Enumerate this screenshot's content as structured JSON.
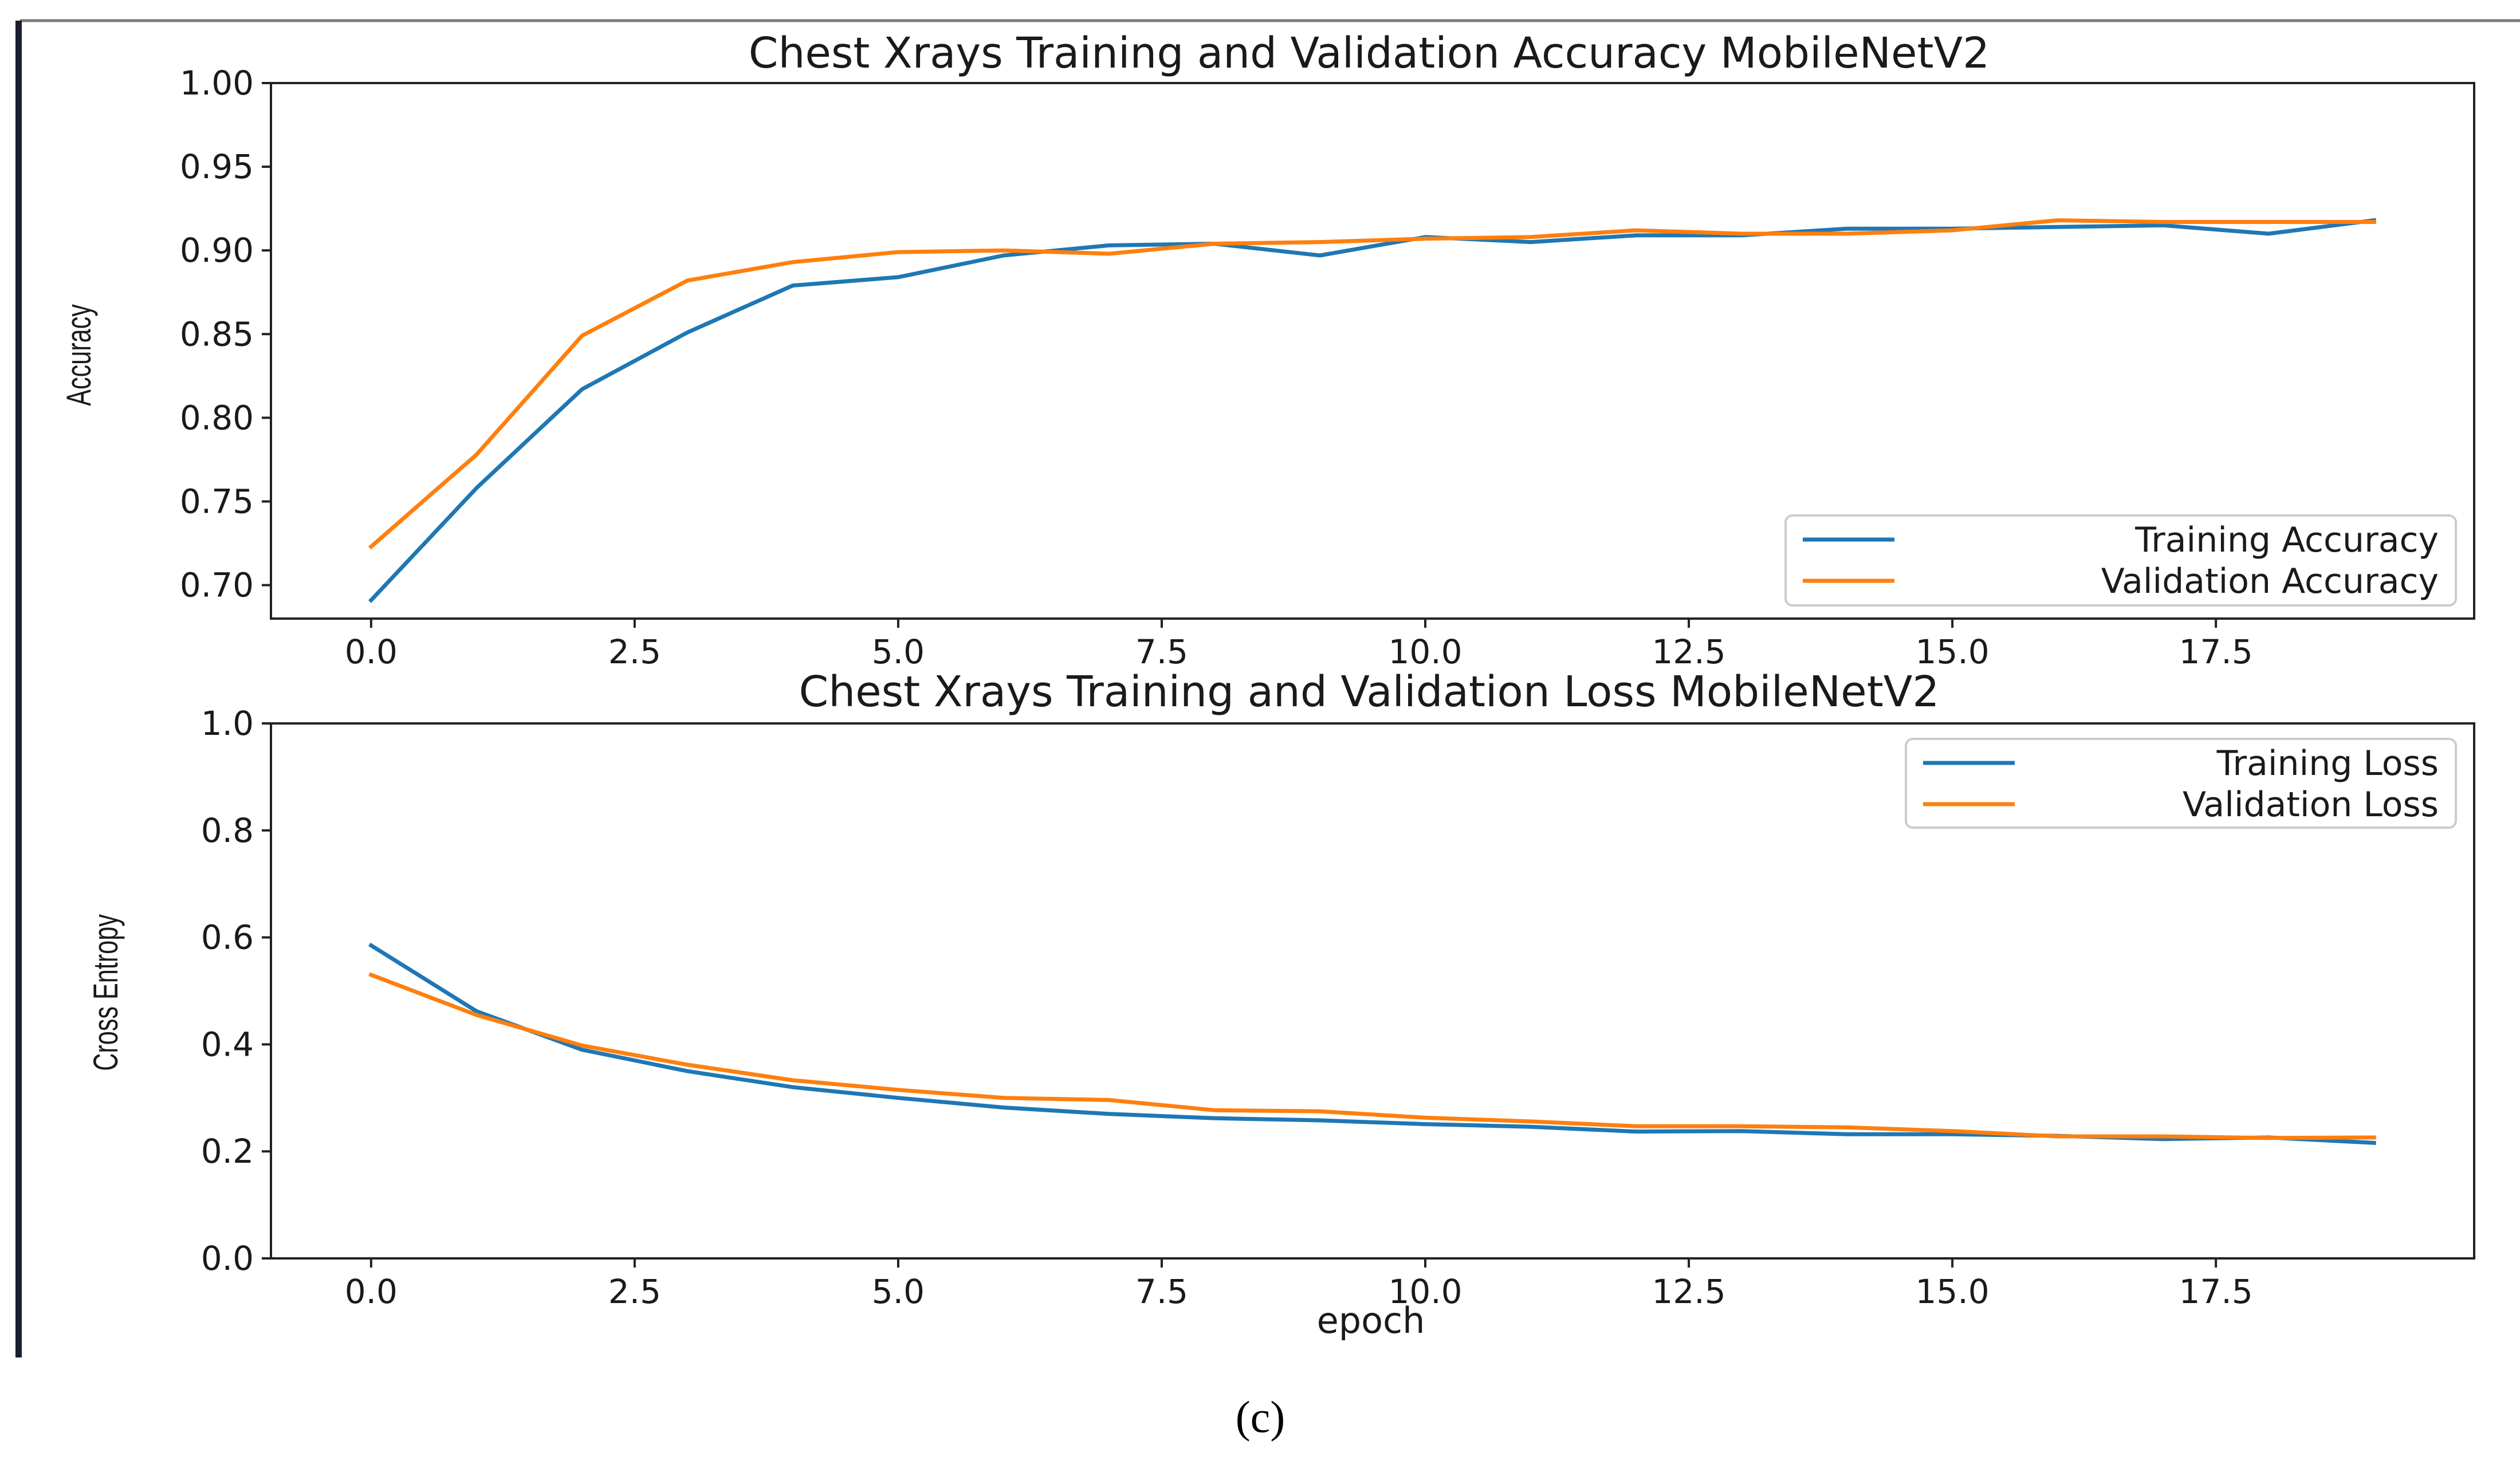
{
  "chart_data": [
    {
      "type": "line",
      "title": "Chest Xrays Training and Validation Accuracy MobileNetV2",
      "xlabel": "",
      "ylabel": "Accuracy",
      "xlim": [
        -0.95,
        19.95
      ],
      "ylim": [
        0.68,
        1.0
      ],
      "xticks": [
        0.0,
        2.5,
        5.0,
        7.5,
        10.0,
        12.5,
        15.0,
        17.5
      ],
      "xtick_labels": [
        "0.0",
        "2.5",
        "5.0",
        "7.5",
        "10.0",
        "12.5",
        "15.0",
        "17.5"
      ],
      "yticks": [
        0.7,
        0.75,
        0.8,
        0.85,
        0.9,
        0.95,
        1.0
      ],
      "ytick_labels": [
        "0.70",
        "0.75",
        "0.80",
        "0.85",
        "0.90",
        "0.95",
        "1.00"
      ],
      "legend_position": "lower-right",
      "x": [
        0,
        1,
        2,
        3,
        4,
        5,
        6,
        7,
        8,
        9,
        10,
        11,
        12,
        13,
        14,
        15,
        16,
        17,
        18,
        19
      ],
      "series": [
        {
          "name": "Training Accuracy",
          "color": "#1f77b4",
          "values": [
            0.691,
            0.758,
            0.817,
            0.851,
            0.879,
            0.884,
            0.897,
            0.903,
            0.904,
            0.897,
            0.908,
            0.905,
            0.909,
            0.909,
            0.913,
            0.913,
            0.914,
            0.915,
            0.91,
            0.918
          ]
        },
        {
          "name": "Validation Accuracy",
          "color": "#ff7f0e",
          "values": [
            0.723,
            0.778,
            0.849,
            0.882,
            0.893,
            0.899,
            0.9,
            0.898,
            0.904,
            0.905,
            0.907,
            0.908,
            0.912,
            0.91,
            0.91,
            0.912,
            0.918,
            0.917,
            0.917,
            0.917
          ]
        }
      ]
    },
    {
      "type": "line",
      "title": "Chest Xrays Training and Validation Loss MobileNetV2",
      "xlabel": "epoch",
      "ylabel": "Cross Entropy",
      "xlim": [
        -0.95,
        19.95
      ],
      "ylim": [
        0.0,
        1.0
      ],
      "xticks": [
        0.0,
        2.5,
        5.0,
        7.5,
        10.0,
        12.5,
        15.0,
        17.5
      ],
      "xtick_labels": [
        "0.0",
        "2.5",
        "5.0",
        "7.5",
        "10.0",
        "12.5",
        "15.0",
        "17.5"
      ],
      "yticks": [
        0.0,
        0.2,
        0.4,
        0.6,
        0.8,
        1.0
      ],
      "ytick_labels": [
        "0.0",
        "0.2",
        "0.4",
        "0.6",
        "0.8",
        "1.0"
      ],
      "legend_position": "upper-right",
      "x": [
        0,
        1,
        2,
        3,
        4,
        5,
        6,
        7,
        8,
        9,
        10,
        11,
        12,
        13,
        14,
        15,
        16,
        17,
        18,
        19
      ],
      "series": [
        {
          "name": "Training Loss",
          "color": "#1f77b4",
          "values": [
            0.585,
            0.462,
            0.39,
            0.35,
            0.32,
            0.3,
            0.282,
            0.27,
            0.262,
            0.258,
            0.251,
            0.246,
            0.237,
            0.238,
            0.232,
            0.232,
            0.229,
            0.223,
            0.226,
            0.216
          ]
        },
        {
          "name": "Validation Loss",
          "color": "#ff7f0e",
          "values": [
            0.53,
            0.455,
            0.398,
            0.362,
            0.333,
            0.315,
            0.3,
            0.296,
            0.277,
            0.275,
            0.263,
            0.256,
            0.247,
            0.247,
            0.245,
            0.238,
            0.228,
            0.228,
            0.225,
            0.226
          ]
        }
      ]
    }
  ],
  "caption": "(c)"
}
